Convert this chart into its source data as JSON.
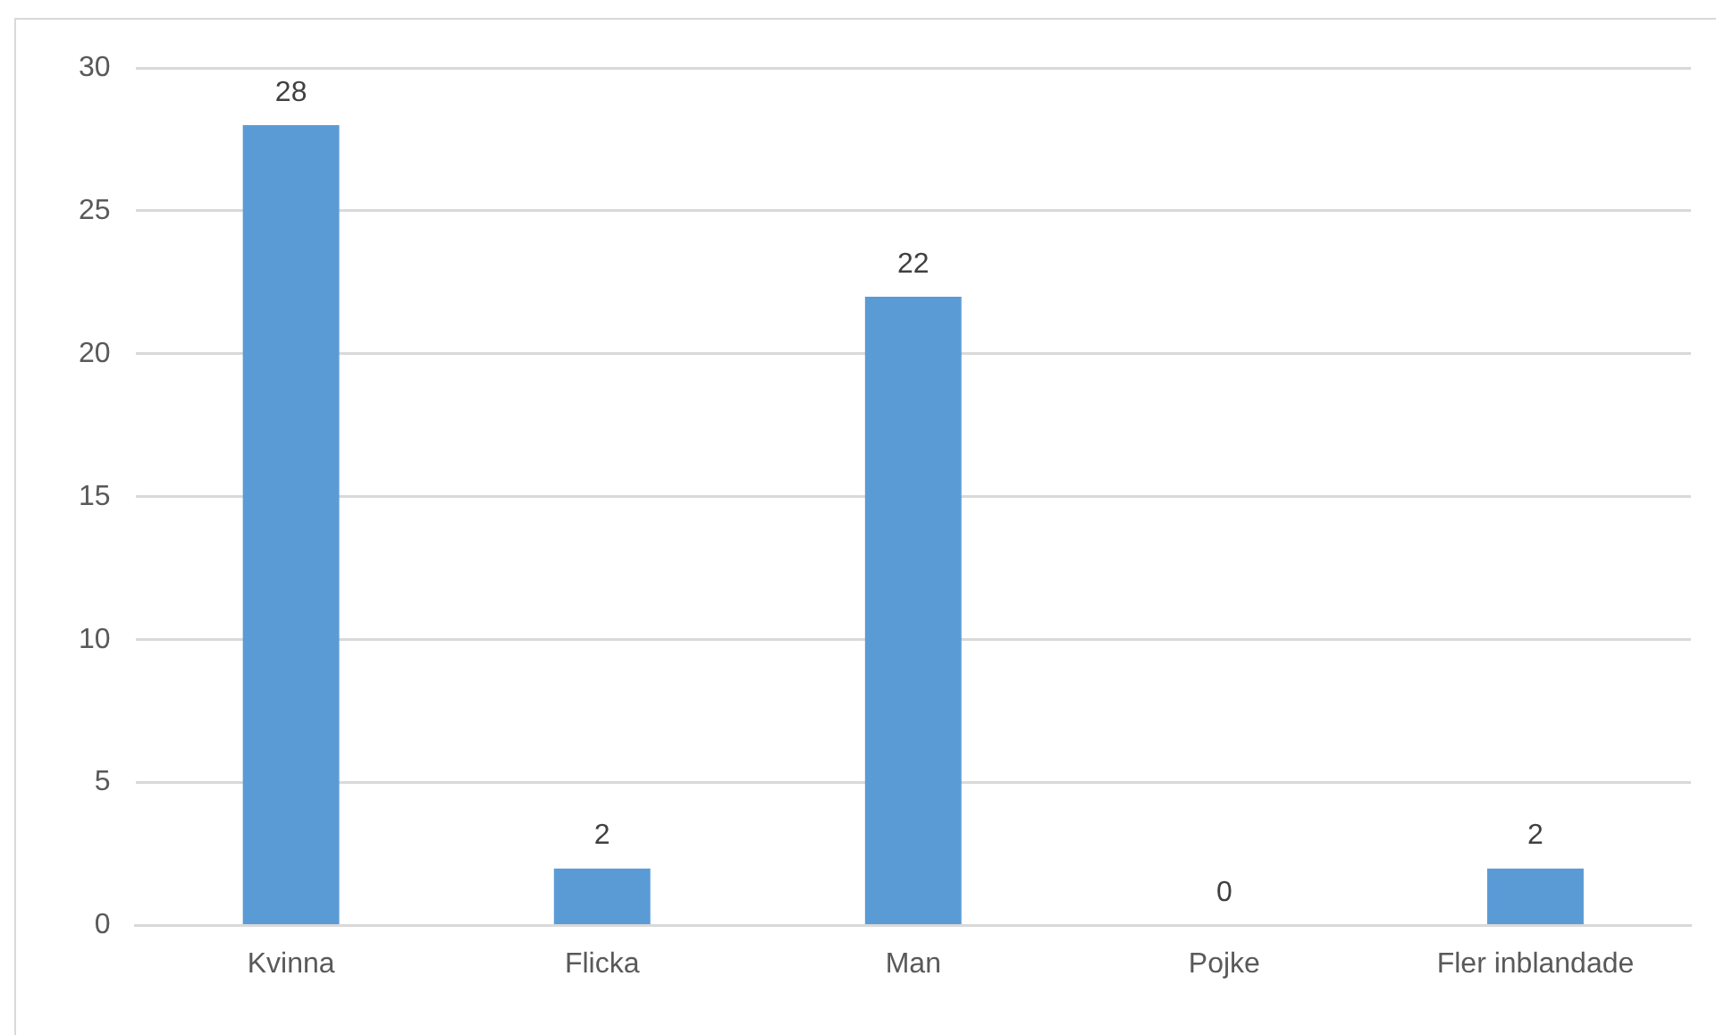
{
  "chart_data": {
    "type": "bar",
    "categories": [
      "Kvinna",
      "Flicka",
      "Man",
      "Pojke",
      "Fler inblandade"
    ],
    "values": [
      28,
      2,
      22,
      0,
      2
    ],
    "color": "#5b9bd5",
    "ylim": [
      0,
      30
    ],
    "yticks": [
      0,
      5,
      10,
      15,
      20,
      25,
      30
    ],
    "grid": "y",
    "data_labels": true
  }
}
